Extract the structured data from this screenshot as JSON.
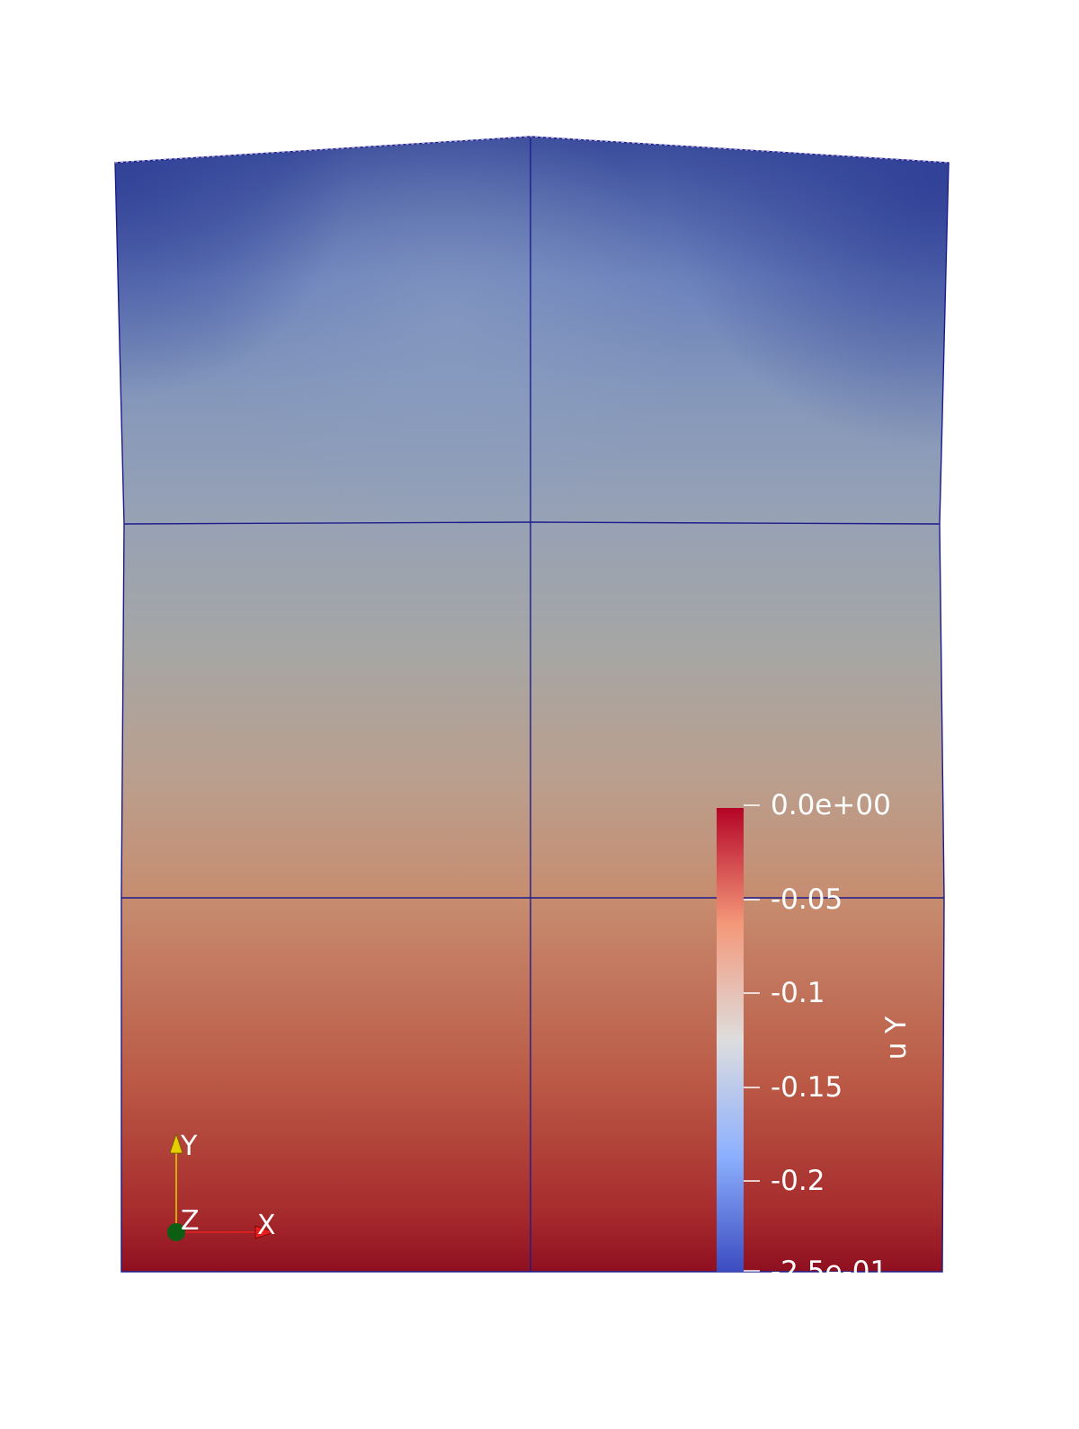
{
  "scalar_bar": {
    "title": "u Y",
    "range": [
      -0.25,
      0.0
    ],
    "ticks": [
      {
        "value": 0.0,
        "label": "0.0e+00"
      },
      {
        "value": -0.05,
        "label": "-0.05"
      },
      {
        "value": -0.1,
        "label": "-0.1"
      },
      {
        "value": -0.15,
        "label": "-0.15"
      },
      {
        "value": -0.2,
        "label": "-0.2"
      },
      {
        "value": -0.25,
        "label": "-2.5e-01"
      }
    ],
    "colormap": {
      "high": "#b40426",
      "mid": "#dddddd",
      "low": "#3b4cc0"
    }
  },
  "axes": {
    "y_label": "Y",
    "x_label": "X",
    "z_label": "Z",
    "y_color": "#e6cf00",
    "x_color": "#e81e1e",
    "z_color": "#0b5e12"
  },
  "mesh": {
    "edge_color": "#1c1c8c"
  }
}
